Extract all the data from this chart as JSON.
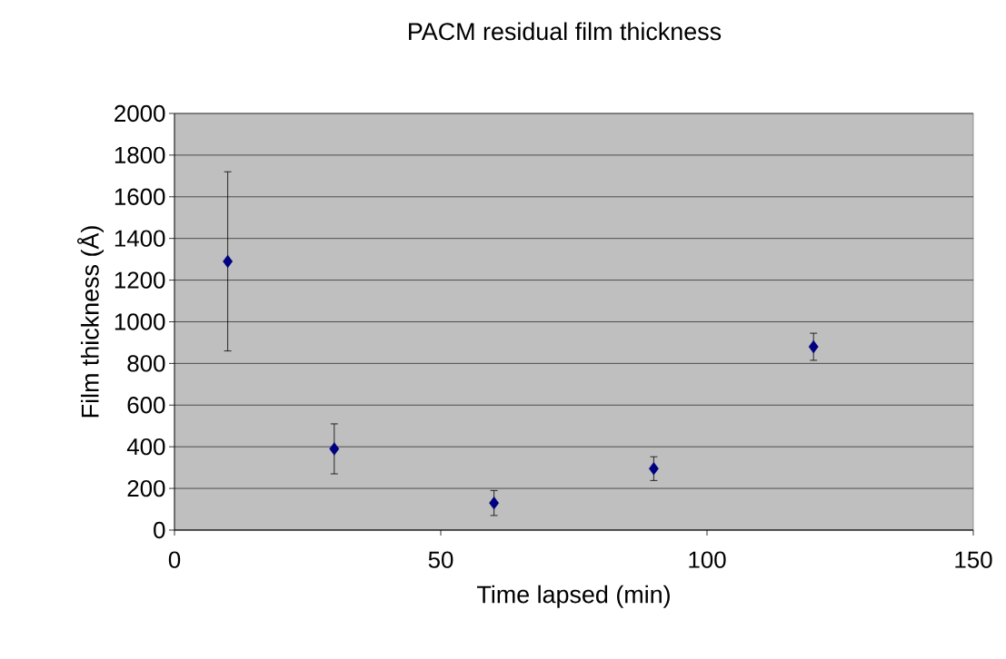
{
  "chart_data": {
    "type": "scatter",
    "title": "PACM residual film thickness",
    "xlabel": "Time lapsed (min)",
    "ylabel": "Film thickness (Å)",
    "x": [
      10,
      30,
      60,
      90,
      120
    ],
    "values": [
      1290,
      390,
      130,
      295,
      880
    ],
    "errors": [
      430,
      120,
      60,
      57,
      65
    ],
    "color": "#000080",
    "marker": "diamond",
    "grid": "y",
    "xlim": [
      0,
      150
    ],
    "xticks": [
      0,
      50,
      100,
      150
    ],
    "ylim": [
      0,
      2000
    ],
    "yticks": [
      0,
      200,
      400,
      600,
      800,
      1000,
      1200,
      1400,
      1600,
      1800,
      2000
    ]
  }
}
